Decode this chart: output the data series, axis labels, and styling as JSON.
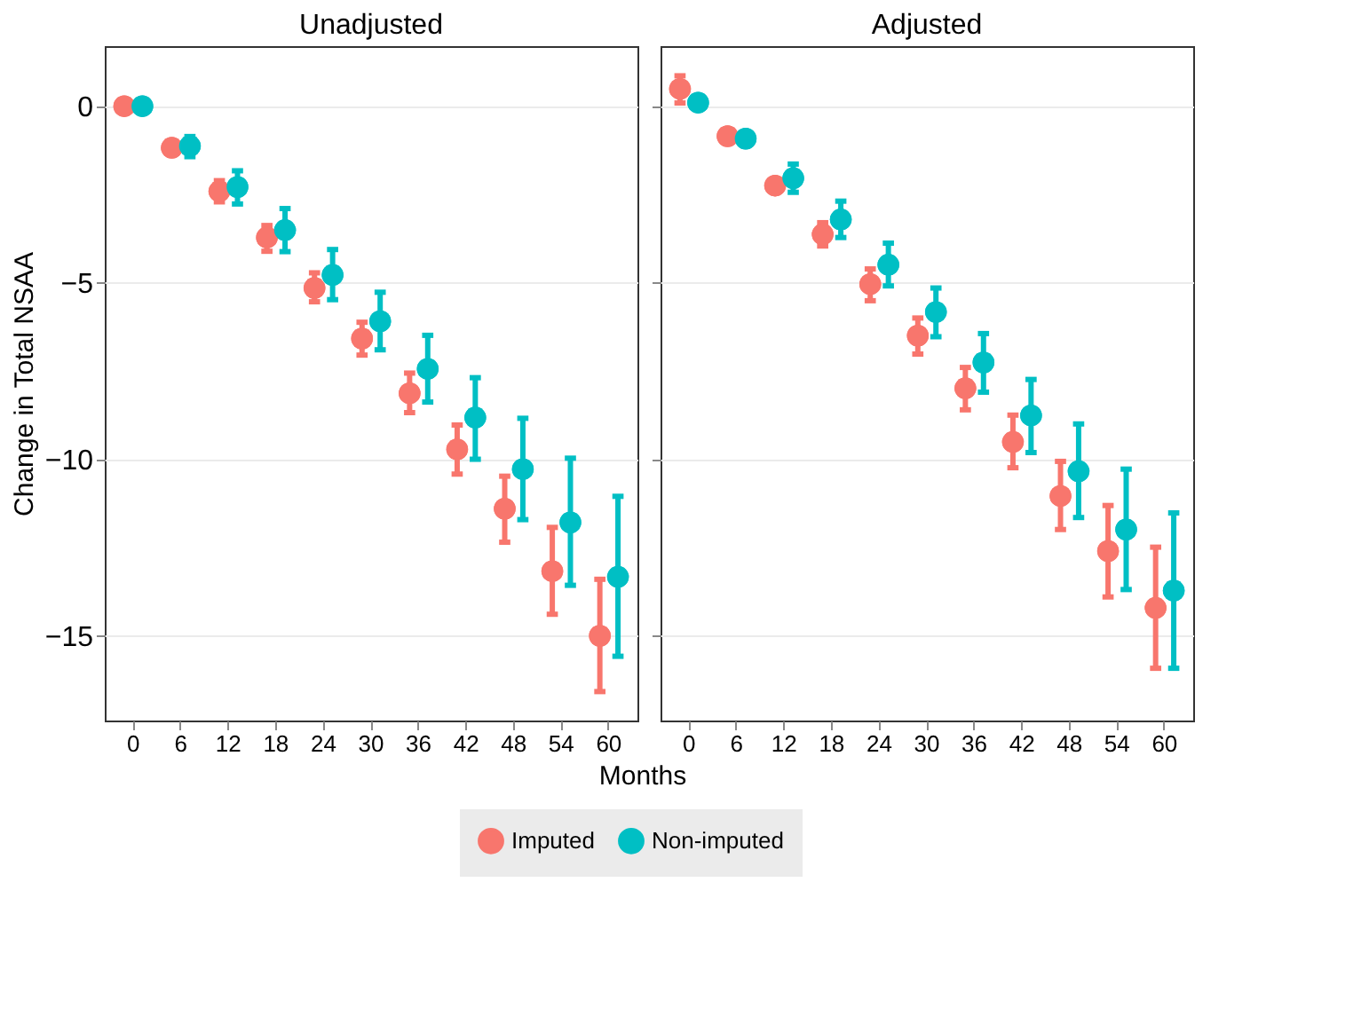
{
  "chart_data": [
    {
      "type": "scatter",
      "title": "Unadjusted",
      "ylabel": "Change in Total NSAA",
      "xlabel": "Months",
      "categories": [
        "0",
        "6",
        "12",
        "18",
        "24",
        "30",
        "36",
        "42",
        "48",
        "54",
        "60"
      ],
      "ylim": [
        -17.4,
        1.7
      ],
      "yticks": [
        0,
        -5,
        -10,
        -15
      ],
      "grid": "y",
      "legend": "bottom",
      "marker": "circle",
      "series": [
        {
          "name": "Imputed",
          "color": "#f8766d",
          "values": [
            0,
            -1.18,
            -2.41,
            -3.72,
            -5.15,
            -6.58,
            -8.13,
            -9.72,
            -11.4,
            -13.17,
            -15.0
          ],
          "errors": [
            null,
            null,
            [
              -2.71,
              -2.11
            ],
            [
              -4.11,
              -3.38
            ],
            [
              -5.54,
              -4.72
            ],
            [
              -7.05,
              -6.12
            ],
            [
              -8.68,
              -7.56
            ],
            [
              -10.42,
              -9.03
            ],
            [
              -12.35,
              -10.48
            ],
            [
              -14.39,
              -11.93
            ],
            [
              -16.58,
              -13.4
            ]
          ]
        },
        {
          "name": "Non-imputed",
          "color": "#00bfc4",
          "values": [
            0,
            -1.13,
            -2.29,
            -3.51,
            -4.78,
            -6.09,
            -7.44,
            -8.82,
            -10.28,
            -11.79,
            -13.33
          ],
          "errors": [
            null,
            [
              -1.43,
              -0.86
            ],
            [
              -2.77,
              -1.83
            ],
            [
              -4.12,
              -2.9
            ],
            [
              -5.48,
              -4.06
            ],
            [
              -6.9,
              -5.27
            ],
            [
              -8.38,
              -6.49
            ],
            [
              -10.0,
              -7.69
            ],
            [
              -11.71,
              -8.84
            ],
            [
              -13.57,
              -9.97
            ],
            [
              -15.58,
              -11.05
            ]
          ]
        }
      ]
    },
    {
      "type": "scatter",
      "title": "Adjusted",
      "categories": [
        "0",
        "6",
        "12",
        "18",
        "24",
        "30",
        "36",
        "42",
        "48",
        "54",
        "60"
      ],
      "ylim": [
        -17.4,
        1.7
      ],
      "yticks": [
        0,
        -5,
        -10,
        -15
      ],
      "tick_labels": "x",
      "grid": "y",
      "marker": "circle",
      "series": [
        {
          "name": "Imputed",
          "color": "#f8766d",
          "values": [
            0.49,
            -0.85,
            -2.25,
            -3.63,
            -5.04,
            -6.5,
            -7.99,
            -9.51,
            -11.04,
            -12.6,
            -14.21
          ],
          "errors": [
            [
              0.09,
              0.86
            ],
            null,
            null,
            [
              -3.96,
              -3.3
            ],
            [
              -5.51,
              -4.61
            ],
            [
              -7.02,
              -6.0
            ],
            [
              -8.6,
              -7.4
            ],
            [
              -10.24,
              -8.75
            ],
            [
              -11.99,
              -10.06
            ],
            [
              -13.9,
              -11.31
            ],
            [
              -15.92,
              -12.49
            ]
          ]
        },
        {
          "name": "Non-imputed",
          "color": "#00bfc4",
          "values": [
            0.1,
            -0.92,
            -2.04,
            -3.21,
            -4.49,
            -5.83,
            -7.26,
            -8.76,
            -10.34,
            -11.99,
            -13.72
          ],
          "errors": [
            null,
            null,
            [
              -2.44,
              -1.64
            ],
            [
              -3.72,
              -2.69
            ],
            [
              -5.09,
              -3.88
            ],
            [
              -6.53,
              -5.15
            ],
            [
              -8.1,
              -6.44
            ],
            [
              -9.81,
              -7.74
            ],
            [
              -11.65,
              -9.0
            ],
            [
              -13.69,
              -10.28
            ],
            [
              -15.92,
              -11.52
            ]
          ]
        }
      ]
    }
  ]
}
